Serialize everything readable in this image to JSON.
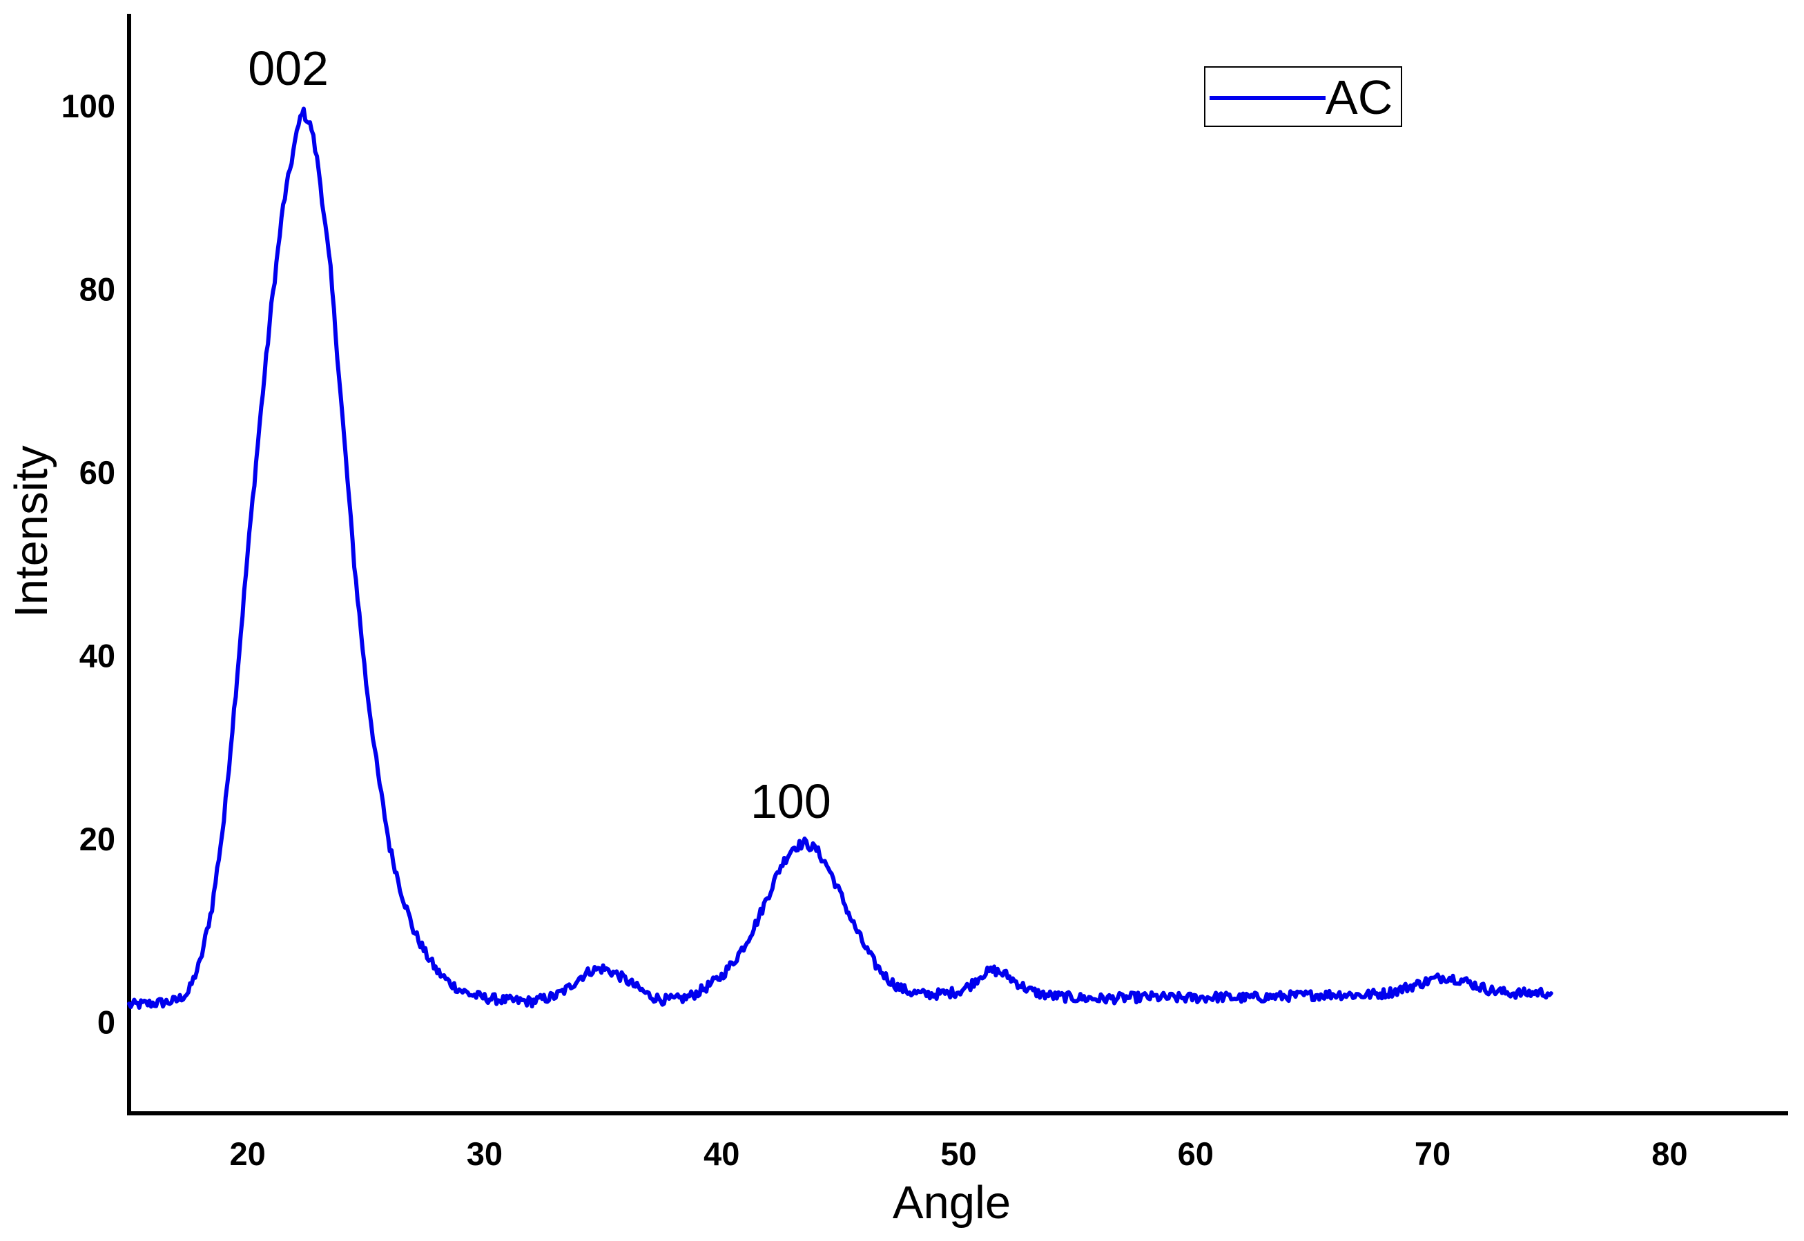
{
  "chart_data": {
    "type": "line",
    "title": "",
    "xlabel": "Angle",
    "ylabel": "Intensity",
    "xlim": [
      15,
      85
    ],
    "ylim": [
      -10,
      110
    ],
    "xticks": [
      20,
      30,
      40,
      50,
      60,
      70,
      80
    ],
    "yticks": [
      0,
      20,
      40,
      60,
      80,
      100
    ],
    "grid": false,
    "legend_position": "top-right",
    "series": [
      {
        "name": "AC",
        "color": "#0000ee",
        "points": [
          [
            15.0,
            1.8
          ],
          [
            15.5,
            1.9
          ],
          [
            16.0,
            2.0
          ],
          [
            16.5,
            2.1
          ],
          [
            17.0,
            2.3
          ],
          [
            17.5,
            3.2
          ],
          [
            18.0,
            6.5
          ],
          [
            18.5,
            12.5
          ],
          [
            19.0,
            22.0
          ],
          [
            19.5,
            36.0
          ],
          [
            20.0,
            51.0
          ],
          [
            20.5,
            65.0
          ],
          [
            21.0,
            78.0
          ],
          [
            21.5,
            89.0
          ],
          [
            22.0,
            96.0
          ],
          [
            22.3,
            99.5
          ],
          [
            22.7,
            97.5
          ],
          [
            23.0,
            93.0
          ],
          [
            23.5,
            82.0
          ],
          [
            24.0,
            66.0
          ],
          [
            24.5,
            50.0
          ],
          [
            25.0,
            37.0
          ],
          [
            25.5,
            27.0
          ],
          [
            26.0,
            19.0
          ],
          [
            26.5,
            14.0
          ],
          [
            27.0,
            10.0
          ],
          [
            27.5,
            7.5
          ],
          [
            28.0,
            5.5
          ],
          [
            28.5,
            4.3
          ],
          [
            29.0,
            3.4
          ],
          [
            29.5,
            2.9
          ],
          [
            30.0,
            2.6
          ],
          [
            31.0,
            2.3
          ],
          [
            32.0,
            2.2
          ],
          [
            33.0,
            2.8
          ],
          [
            33.5,
            3.6
          ],
          [
            34.0,
            4.8
          ],
          [
            34.5,
            5.6
          ],
          [
            35.0,
            5.8
          ],
          [
            35.5,
            5.3
          ],
          [
            36.0,
            4.5
          ],
          [
            36.5,
            3.6
          ],
          [
            37.0,
            2.8
          ],
          [
            37.5,
            2.4
          ],
          [
            38.0,
            2.4
          ],
          [
            38.5,
            2.6
          ],
          [
            39.0,
            3.2
          ],
          [
            39.5,
            4.0
          ],
          [
            40.0,
            5.0
          ],
          [
            40.5,
            6.5
          ],
          [
            41.0,
            8.5
          ],
          [
            41.5,
            11.0
          ],
          [
            42.0,
            14.0
          ],
          [
            42.5,
            17.0
          ],
          [
            43.0,
            19.0
          ],
          [
            43.5,
            19.5
          ],
          [
            44.0,
            18.8
          ],
          [
            44.5,
            16.8
          ],
          [
            45.0,
            14.0
          ],
          [
            45.5,
            11.0
          ],
          [
            46.0,
            8.4
          ],
          [
            46.5,
            6.2
          ],
          [
            47.0,
            4.7
          ],
          [
            47.5,
            3.7
          ],
          [
            48.0,
            3.2
          ],
          [
            48.5,
            3.0
          ],
          [
            49.0,
            3.0
          ],
          [
            49.5,
            3.1
          ],
          [
            50.0,
            3.3
          ],
          [
            50.5,
            4.0
          ],
          [
            51.0,
            5.2
          ],
          [
            51.5,
            5.6
          ],
          [
            52.0,
            5.1
          ],
          [
            52.5,
            4.2
          ],
          [
            53.0,
            3.4
          ],
          [
            53.5,
            3.0
          ],
          [
            54.0,
            2.8
          ],
          [
            55.0,
            2.6
          ],
          [
            56.0,
            2.5
          ],
          [
            57.0,
            2.6
          ],
          [
            58.0,
            2.7
          ],
          [
            59.0,
            2.6
          ],
          [
            60.0,
            2.6
          ],
          [
            61.0,
            2.7
          ],
          [
            62.0,
            2.6
          ],
          [
            63.0,
            2.7
          ],
          [
            64.0,
            2.8
          ],
          [
            65.0,
            2.9
          ],
          [
            66.0,
            3.0
          ],
          [
            67.0,
            2.9
          ],
          [
            68.0,
            3.1
          ],
          [
            68.5,
            3.4
          ],
          [
            69.0,
            3.8
          ],
          [
            69.5,
            4.2
          ],
          [
            70.0,
            4.6
          ],
          [
            70.5,
            4.9
          ],
          [
            71.0,
            4.7
          ],
          [
            71.5,
            4.3
          ],
          [
            72.0,
            3.8
          ],
          [
            72.5,
            3.4
          ],
          [
            73.0,
            3.2
          ],
          [
            73.5,
            3.1
          ],
          [
            74.0,
            3.1
          ],
          [
            74.5,
            3.2
          ],
          [
            75.0,
            3.1
          ]
        ]
      }
    ],
    "annotations": [
      {
        "text": "002",
        "x": 22.3,
        "y": 100
      },
      {
        "text": "100",
        "x": 43.5,
        "y": 20
      }
    ]
  }
}
